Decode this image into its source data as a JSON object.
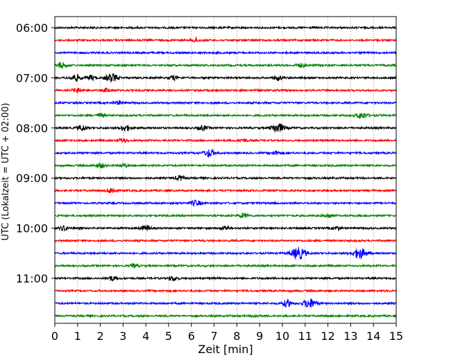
{
  "chart_data": {
    "type": "line",
    "title": "",
    "xlabel": "Zeit  [min]",
    "ylabel": "UTC (Lokalzeit = UTC + 02:00)",
    "xlim": [
      0,
      15
    ],
    "x_ticks": [
      "0",
      "1",
      "2",
      "3",
      "4",
      "5",
      "6",
      "7",
      "8",
      "9",
      "10",
      "11",
      "12",
      "13",
      "14",
      "15"
    ],
    "y_tick_labels": [
      "06:00",
      "07:00",
      "08:00",
      "09:00",
      "10:00",
      "11:00"
    ],
    "y_ticks_at_trace": [
      0,
      4,
      8,
      12,
      16,
      20
    ],
    "trace_interval_min": 15,
    "grid": "vertical dotted",
    "legend": "none",
    "trace_colors": [
      "#000000",
      "#ff0000",
      "#0000ff",
      "#008000"
    ],
    "traces": [
      {
        "start": "06:00",
        "color": "#000000",
        "events": []
      },
      {
        "start": "06:15",
        "color": "#ff0000",
        "events": [
          {
            "t": 6.2,
            "amp": 0.8
          }
        ]
      },
      {
        "start": "06:30",
        "color": "#0000ff",
        "events": []
      },
      {
        "start": "06:45",
        "color": "#008000",
        "events": [
          {
            "t": 0.3,
            "amp": 1.2
          },
          {
            "t": 10.8,
            "amp": 0.8
          }
        ]
      },
      {
        "start": "07:00",
        "color": "#000000",
        "events": [
          {
            "t": 0.9,
            "amp": 1.4
          },
          {
            "t": 1.6,
            "amp": 1.0
          },
          {
            "t": 2.5,
            "amp": 1.8
          },
          {
            "t": 5.2,
            "amp": 0.9
          },
          {
            "t": 9.8,
            "amp": 1.0
          }
        ]
      },
      {
        "start": "07:15",
        "color": "#ff0000",
        "events": [
          {
            "t": 1.0,
            "amp": 1.0
          },
          {
            "t": 2.3,
            "amp": 0.8
          }
        ]
      },
      {
        "start": "07:30",
        "color": "#0000ff",
        "events": [
          {
            "t": 2.8,
            "amp": 0.7
          }
        ]
      },
      {
        "start": "07:45",
        "color": "#008000",
        "events": [
          {
            "t": 2.0,
            "amp": 0.8
          },
          {
            "t": 13.5,
            "amp": 1.4
          }
        ]
      },
      {
        "start": "08:00",
        "color": "#000000",
        "events": [
          {
            "t": 1.2,
            "amp": 1.2
          },
          {
            "t": 3.1,
            "amp": 1.3
          },
          {
            "t": 6.5,
            "amp": 1.0
          },
          {
            "t": 9.8,
            "amp": 2.0
          }
        ]
      },
      {
        "start": "08:15",
        "color": "#ff0000",
        "events": [
          {
            "t": 3.0,
            "amp": 0.8
          },
          {
            "t": 8.3,
            "amp": 0.7
          }
        ]
      },
      {
        "start": "08:30",
        "color": "#0000ff",
        "events": [
          {
            "t": 6.8,
            "amp": 1.6
          },
          {
            "t": 9.7,
            "amp": 0.8
          }
        ]
      },
      {
        "start": "08:45",
        "color": "#008000",
        "events": [
          {
            "t": 2.0,
            "amp": 1.0
          },
          {
            "t": 3.0,
            "amp": 0.8
          }
        ]
      },
      {
        "start": "09:00",
        "color": "#000000",
        "events": [
          {
            "t": 5.5,
            "amp": 1.0
          }
        ]
      },
      {
        "start": "09:15",
        "color": "#ff0000",
        "events": [
          {
            "t": 2.5,
            "amp": 1.2
          }
        ]
      },
      {
        "start": "09:30",
        "color": "#0000ff",
        "events": [
          {
            "t": 6.2,
            "amp": 1.2
          }
        ]
      },
      {
        "start": "09:45",
        "color": "#008000",
        "events": [
          {
            "t": 8.3,
            "amp": 1.0
          },
          {
            "t": 12.0,
            "amp": 1.0
          }
        ]
      },
      {
        "start": "10:00",
        "color": "#000000",
        "events": [
          {
            "t": 0.4,
            "amp": 1.0
          },
          {
            "t": 4.0,
            "amp": 1.2
          },
          {
            "t": 7.5,
            "amp": 0.8
          },
          {
            "t": 12.4,
            "amp": 0.8
          }
        ]
      },
      {
        "start": "10:15",
        "color": "#ff0000",
        "events": []
      },
      {
        "start": "10:30",
        "color": "#0000ff",
        "events": [
          {
            "t": 10.7,
            "amp": 2.5
          },
          {
            "t": 13.4,
            "amp": 2.2
          }
        ]
      },
      {
        "start": "10:45",
        "color": "#008000",
        "events": [
          {
            "t": 3.5,
            "amp": 0.7
          }
        ]
      },
      {
        "start": "11:00",
        "color": "#000000",
        "events": [
          {
            "t": 2.5,
            "amp": 1.0
          },
          {
            "t": 5.2,
            "amp": 1.0
          }
        ]
      },
      {
        "start": "11:15",
        "color": "#ff0000",
        "events": []
      },
      {
        "start": "11:30",
        "color": "#0000ff",
        "events": [
          {
            "t": 10.2,
            "amp": 1.4
          },
          {
            "t": 11.2,
            "amp": 2.0
          }
        ]
      },
      {
        "start": "11:45",
        "color": "#008000",
        "events": [
          {
            "t": 8.8,
            "amp": 0.7
          }
        ]
      }
    ]
  }
}
